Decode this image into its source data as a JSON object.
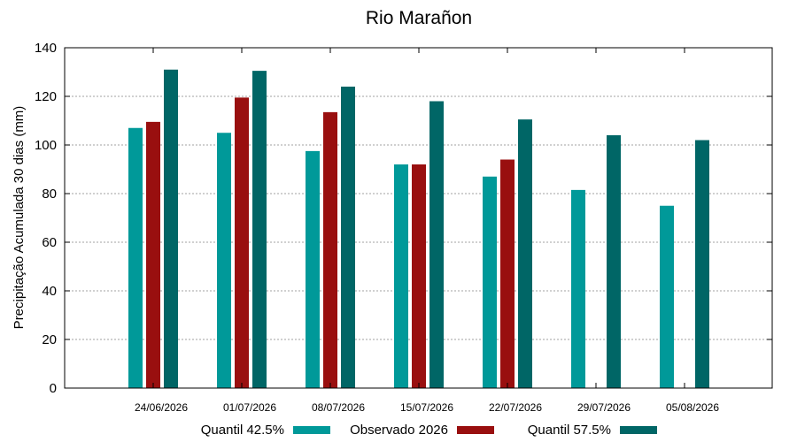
{
  "chart_data": {
    "type": "bar",
    "title": "Rio Marañon",
    "ylabel": "Precipitação Acumulada 30 dias (mm)",
    "xlabel": "",
    "ylim": [
      0,
      140
    ],
    "yticks": [
      0,
      20,
      40,
      60,
      80,
      100,
      120,
      140
    ],
    "grid": true,
    "legend_position": "bottom",
    "categories": [
      "24/06/2026",
      "01/07/2026",
      "08/07/2026",
      "15/07/2026",
      "22/07/2026",
      "29/07/2026",
      "05/08/2026"
    ],
    "series": [
      {
        "name": "Quantil 42.5%",
        "color": "#009999",
        "values": [
          107,
          105,
          97.5,
          92,
          87,
          81.5,
          75
        ]
      },
      {
        "name": "Observado 2026",
        "color": "#990f0f",
        "values": [
          109.5,
          119.5,
          113.5,
          92,
          94,
          null,
          null
        ]
      },
      {
        "name": "Quantil 57.5%",
        "color": "#006666",
        "values": [
          131,
          130.5,
          124,
          118,
          110.5,
          104,
          102
        ]
      }
    ]
  }
}
